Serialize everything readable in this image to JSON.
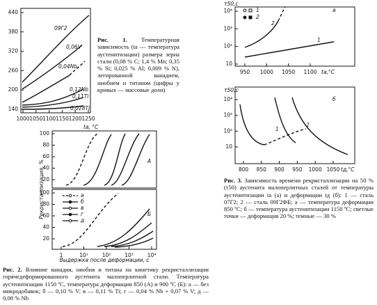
{
  "figure1": {
    "yticks": [
      "440",
      "380",
      "320",
      "260",
      "200",
      "140"
    ],
    "xticks": [
      "1000",
      "1050",
      "1100",
      "1150",
      "1200",
      "1250"
    ],
    "x_label": "tа, °C",
    "curve_labels": [
      "09Г2",
      "0,06V",
      "0,04Nb",
      "0,12Nb",
      "0,11Ti",
      "0,028Ti"
    ],
    "caption": {
      "label": "Рис. 1.",
      "text": "Температурная зависимость (tа — температура аустенитизации) размера зерна стали (0,08 % C; 1,4 % Mn; 0,35 % Si; 0,025 % Al; 0,009 % N), легированной ванадием, ниобием и титаном (цифры у кривых — массовые доли)"
    }
  },
  "figure2": {
    "y_label": "Рекристаллизация, %",
    "top_yticks": [
      "100",
      "80",
      "60",
      "40",
      "20"
    ],
    "bottom_yticks": [
      "100",
      "80",
      "60",
      "40",
      "20"
    ],
    "xticks": [
      "1",
      "10¹",
      "10²",
      "10³",
      "10⁴"
    ],
    "x_label": "Выдержка после деформации, с",
    "panels": [
      "А",
      "Б"
    ],
    "legend": [
      "а",
      "б",
      "в",
      "г",
      "д"
    ],
    "caption": {
      "label": "Рис. 2.",
      "text": "Влияние ванадия, ниобия и титана на кинетику рекристаллизации горячедеформированного аустенита малоперлитной стали. Температура аустенитизации 1150 ºС, температура деформации 850 (А) и 900 ºС (Б): а — без микродобавок; б — 0,10 % V; в — 0,11 % Ti; г — 0,04 % Nb + 0,07 % V; д — 0,08 % Nb"
    }
  },
  "figure3": {
    "y_label": "τ50,с",
    "top": {
      "yticks": [
        "10⁴",
        "10³",
        "10²",
        "10"
      ],
      "xticks": [
        "950",
        "1000",
        "1050",
        "1100"
      ],
      "x_label": "tа,°C",
      "panel": "а",
      "legend": [
        "1",
        "2"
      ],
      "curve_labels": [
        "1",
        "2"
      ]
    },
    "bottom": {
      "yticks": [
        "10⁴",
        "10³",
        "10²",
        "10"
      ],
      "xticks": [
        "800",
        "850",
        "900",
        "950",
        "1000",
        "1050"
      ],
      "x_label": "tд,°C",
      "panel": "б",
      "curve_labels": [
        "1",
        "2"
      ]
    },
    "caption": {
      "label": "Рис. 3.",
      "text": "Зависимость времени рекристаллизации на 50 % (τ50) аустенита малоперлитных сталей от температуры аустенитизации tа (а) и деформации tд (б): 1 — сталь 07Г2; 2 — сталь 09Г2ФБ; а — температура деформации 850 ºС; б — температура аустенитизации 1150 ºС; светлые точки — деформация 20 %; темные — 30 %"
    }
  }
}
